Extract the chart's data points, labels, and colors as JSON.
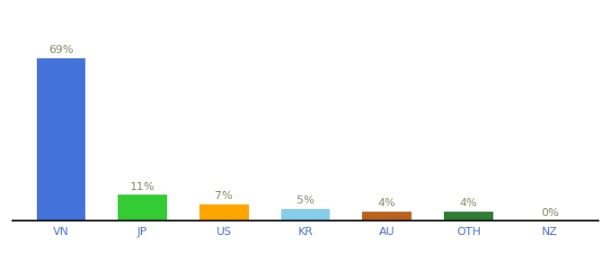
{
  "categories": [
    "VN",
    "JP",
    "US",
    "KR",
    "AU",
    "OTH",
    "NZ"
  ],
  "values": [
    69,
    11,
    7,
    5,
    4,
    4,
    0
  ],
  "bar_colors": [
    "#4472DB",
    "#33CC33",
    "#FFA500",
    "#87CEEB",
    "#B8621B",
    "#2E7D32",
    "#D3D3D3"
  ],
  "labels": [
    "69%",
    "11%",
    "7%",
    "5%",
    "4%",
    "4%",
    "0%"
  ],
  "ylim": [
    0,
    80
  ],
  "background_color": "#ffffff",
  "label_color": "#888866",
  "label_fontsize": 9,
  "tick_label_color": "#4472DB",
  "tick_fontsize": 9,
  "bar_width": 0.6
}
